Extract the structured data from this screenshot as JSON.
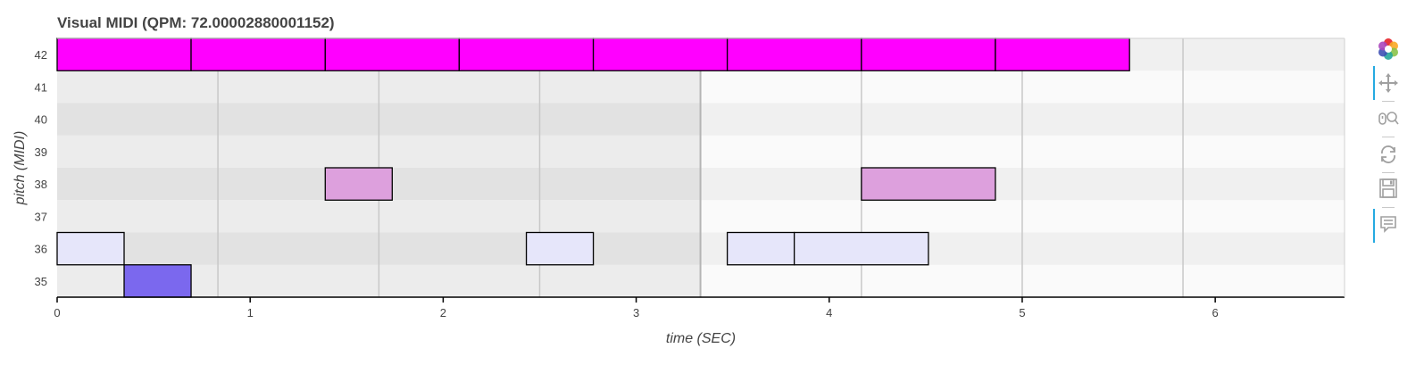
{
  "title": "Visual MIDI (QPM: 72.00002880001152)",
  "toolbar": {
    "logo": "bokeh-logo-icon",
    "tools": [
      {
        "name": "pan-tool-icon",
        "active": true
      },
      {
        "name": "wheel-zoom-tool-icon",
        "active": false
      },
      {
        "name": "reset-tool-icon",
        "active": false
      },
      {
        "name": "save-tool-icon",
        "active": false
      },
      {
        "name": "hover-tool-icon",
        "active": true
      }
    ]
  },
  "chart_data": {
    "type": "piano-roll",
    "xlabel": "time (SEC)",
    "ylabel": "pitch (MIDI)",
    "xlim": [
      0,
      6.67
    ],
    "ylim": [
      35,
      42
    ],
    "x_ticks": [
      0,
      1,
      2,
      3,
      4,
      5,
      6
    ],
    "y_ticks": [
      35,
      36,
      37,
      38,
      39,
      40,
      41,
      42
    ],
    "beat_lines": [
      0.833,
      1.667,
      2.5,
      3.333,
      4.167,
      5.0,
      5.833
    ],
    "bar_line": 3.333,
    "highlight_region": [
      0,
      3.333
    ],
    "colors": {
      "pitch_42": "#ff00ff",
      "pitch_38": "#dda0dd",
      "pitch_36": "#e6e6fa",
      "pitch_35": "#7b68ee",
      "row_even": "#ececec",
      "row_odd": "#e2e2e2",
      "row_even_light": "#fafafa",
      "row_odd_light": "#f0f0f0"
    },
    "notes": [
      {
        "pitch": 42,
        "start": 0.0,
        "end": 0.694
      },
      {
        "pitch": 42,
        "start": 0.694,
        "end": 1.389
      },
      {
        "pitch": 42,
        "start": 1.389,
        "end": 2.083
      },
      {
        "pitch": 42,
        "start": 2.083,
        "end": 2.778
      },
      {
        "pitch": 42,
        "start": 2.778,
        "end": 3.472
      },
      {
        "pitch": 42,
        "start": 3.472,
        "end": 4.167
      },
      {
        "pitch": 42,
        "start": 4.167,
        "end": 4.861
      },
      {
        "pitch": 42,
        "start": 4.861,
        "end": 5.556
      },
      {
        "pitch": 38,
        "start": 1.389,
        "end": 1.736
      },
      {
        "pitch": 38,
        "start": 4.167,
        "end": 4.861
      },
      {
        "pitch": 36,
        "start": 0.0,
        "end": 0.347
      },
      {
        "pitch": 36,
        "start": 2.431,
        "end": 2.778
      },
      {
        "pitch": 36,
        "start": 3.472,
        "end": 3.819
      },
      {
        "pitch": 36,
        "start": 3.819,
        "end": 4.514
      },
      {
        "pitch": 35,
        "start": 0.347,
        "end": 0.694
      }
    ]
  }
}
